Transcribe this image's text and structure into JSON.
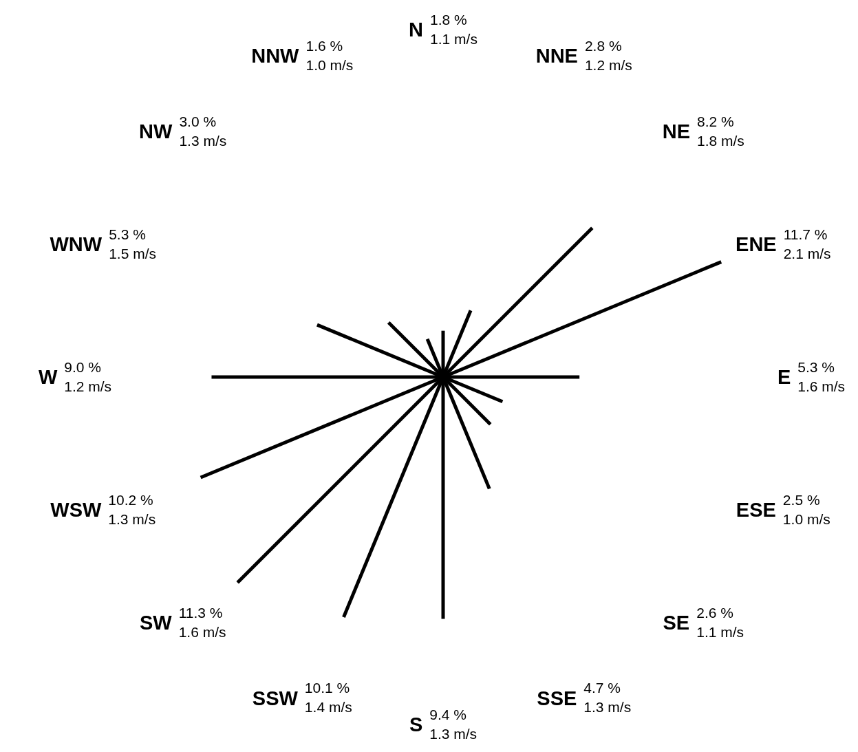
{
  "chart_data": {
    "type": "other",
    "categories": [
      "N",
      "NNE",
      "NE",
      "ENE",
      "E",
      "ESE",
      "SE",
      "SSE",
      "S",
      "SSW",
      "SW",
      "WSW",
      "W",
      "WNW",
      "NW",
      "NNW"
    ],
    "series": [
      {
        "color": "#000000",
        "values": [
          1.8,
          2.8,
          8.2,
          11.7,
          5.3,
          2.5,
          2.6,
          4.7,
          9.4,
          10.1,
          11.3,
          10.2,
          9.0,
          5.3,
          3.0,
          1.6
        ],
        "value_labels": [
          "1.8 %",
          "2.8 %",
          "8.2 %",
          "11.7 %",
          "5.3 %",
          "2.5 %",
          "2.6 %",
          "4.7 %",
          "9.4 %",
          "10.1 %",
          "11.3 %",
          "10.2 %",
          "9.0 %",
          "5.3 %",
          "3.0 %",
          "1.6 %"
        ]
      },
      {
        "values": [
          1.1,
          1.2,
          1.8,
          2.1,
          1.6,
          1.0,
          1.1,
          1.3,
          1.3,
          1.4,
          1.6,
          1.3,
          1.2,
          1.5,
          1.3,
          1.0
        ],
        "value_labels": [
          "1.1 m/s",
          "1.2 m/s",
          "1.8 m/s",
          "2.1 m/s",
          "1.6 m/s",
          "1.0 m/s",
          "1.1 m/s",
          "1.3 m/s",
          "1.3 m/s",
          "1.4 m/s",
          "1.6 m/s",
          "1.3 m/s",
          "1.2 m/s",
          "1.5 m/s",
          "1.3 m/s",
          "1.0 m/s"
        ]
      }
    ]
  }
}
